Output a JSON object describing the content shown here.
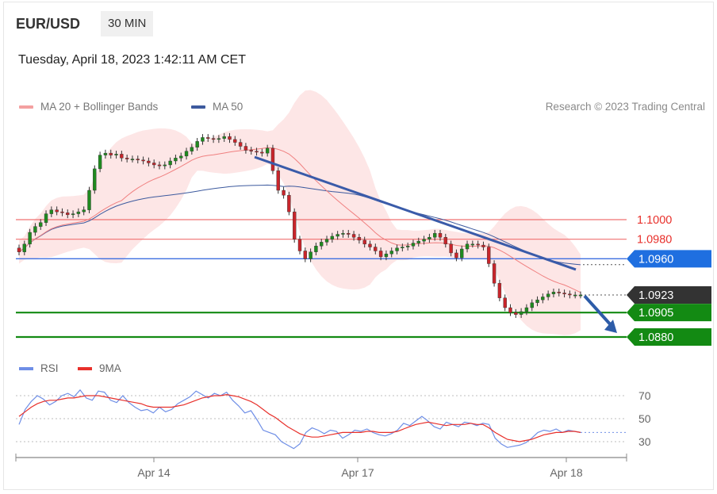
{
  "header": {
    "symbol": "EUR/USD",
    "timeframe": "30 MIN",
    "timestamp": "Tuesday, April 18, 2023 1:42:11 AM CET"
  },
  "legend": {
    "ma20_label": "MA 20 + Bollinger Bands",
    "ma50_label": "MA 50",
    "research": "Research © 2023 Trading Central"
  },
  "rsi_legend": {
    "rsi_label": "RSI",
    "ma_label": "9MA"
  },
  "colors": {
    "ma20": "#f08080",
    "bollinger_fill": "#fde3e3",
    "ma50": "#3d5a9e",
    "trendline": "#3a5ba9",
    "resistance": "#f07070",
    "resistance_text": "#e8302b",
    "pivot": "#3d6fe0",
    "support": "#138a13",
    "current": "#333333",
    "rsi": "#6e8ee6",
    "rsi_ma": "#e8302b",
    "candle_up": "#1f8a1f",
    "candle_down": "#c8252b"
  },
  "chart_data": {
    "type": "candlestick",
    "symbol": "EUR/USD",
    "interval": "30 MIN",
    "x_ticks": [
      "Apr 14",
      "Apr 17",
      "Apr 18"
    ],
    "price_levels": [
      {
        "value": 1.1,
        "label": "1.1000",
        "kind": "resistance"
      },
      {
        "value": 1.098,
        "label": "1.0980",
        "kind": "resistance"
      },
      {
        "value": 1.096,
        "label": "1.0960",
        "kind": "pivot"
      },
      {
        "value": 1.0923,
        "label": "1.0923",
        "kind": "last_price"
      },
      {
        "value": 1.0905,
        "label": "1.0905",
        "kind": "support"
      },
      {
        "value": 1.088,
        "label": "1.0880",
        "kind": "support"
      }
    ],
    "price_close_series": [
      1.0967,
      1.0975,
      1.0987,
      1.0993,
      1.0997,
      1.1006,
      1.101,
      1.1008,
      1.1007,
      1.1005,
      1.1006,
      1.1008,
      1.101,
      1.103,
      1.1052,
      1.1066,
      1.1068,
      1.1066,
      1.1067,
      1.1063,
      1.1062,
      1.1062,
      1.1061,
      1.106,
      1.1058,
      1.1056,
      1.1055,
      1.1056,
      1.106,
      1.1063,
      1.1065,
      1.107,
      1.1074,
      1.108,
      1.1084,
      1.1083,
      1.1082,
      1.1083,
      1.1085,
      1.1082,
      1.1079,
      1.1075,
      1.1071,
      1.107,
      1.1069,
      1.1068,
      1.1073,
      1.105,
      1.103,
      1.1025,
      1.1008,
      1.098,
      1.0968,
      1.096,
      1.0967,
      1.0973,
      1.0977,
      1.098,
      1.0983,
      1.0985,
      1.0986,
      1.0985,
      1.0982,
      1.0979,
      1.0975,
      1.0972,
      1.0968,
      1.0962,
      1.0965,
      1.0968,
      1.0971,
      1.0972,
      1.0973,
      1.0976,
      1.0978,
      1.098,
      1.0982,
      1.0986,
      1.0982,
      1.0975,
      1.0966,
      1.0961,
      1.097,
      1.0975,
      1.0975,
      1.0974,
      1.0972,
      1.0955,
      1.0935,
      1.092,
      1.091,
      1.0905,
      1.0903,
      1.0906,
      1.091,
      1.0915,
      1.0918,
      1.0921,
      1.0924,
      1.0926,
      1.0925,
      1.0924,
      1.0923,
      1.0923,
      1.0923
    ],
    "ma50_endpoint": 1.095,
    "trendline": {
      "start": 1.1064,
      "end": 1.0949
    },
    "forecast_target": 1.088,
    "rsi": {
      "y_ticks": [
        70,
        50,
        30
      ],
      "ylim": [
        20,
        80
      ],
      "rsi_series": [
        45,
        58,
        65,
        70,
        67,
        62,
        65,
        70,
        72,
        69,
        75,
        68,
        66,
        74,
        73,
        66,
        64,
        70,
        64,
        60,
        57,
        58,
        55,
        60,
        56,
        58,
        63,
        66,
        69,
        74,
        71,
        68,
        72,
        70,
        73,
        66,
        61,
        55,
        57,
        49,
        40,
        38,
        36,
        30,
        27,
        24,
        28,
        38,
        42,
        40,
        37,
        40,
        39,
        33,
        36,
        40,
        39,
        41,
        38,
        36,
        35,
        37,
        40,
        46,
        44,
        48,
        52,
        48,
        43,
        41,
        47,
        45,
        43,
        47,
        46,
        44,
        46,
        45,
        33,
        28,
        25,
        26,
        27,
        29,
        33,
        38,
        40,
        39,
        41,
        38,
        40,
        39,
        38
      ],
      "ma_series": [
        52,
        56,
        60,
        63,
        65,
        66,
        66,
        67,
        68,
        68,
        69,
        70,
        70,
        70,
        69,
        68,
        67,
        66,
        65,
        64,
        63,
        61,
        60,
        60,
        60,
        60,
        61,
        62,
        64,
        66,
        68,
        69,
        70,
        70,
        71,
        70,
        69,
        67,
        65,
        62,
        58,
        54,
        51,
        47,
        43,
        40,
        37,
        35,
        34,
        34,
        35,
        36,
        37,
        38,
        38,
        38,
        38,
        39,
        39,
        38,
        38,
        38,
        39,
        41,
        43,
        45,
        46,
        47,
        46,
        45,
        44,
        45,
        45,
        45,
        46,
        45,
        45,
        42,
        38,
        35,
        32,
        31,
        30,
        31,
        32,
        34,
        36,
        37,
        38,
        38,
        39,
        39,
        38
      ]
    }
  }
}
